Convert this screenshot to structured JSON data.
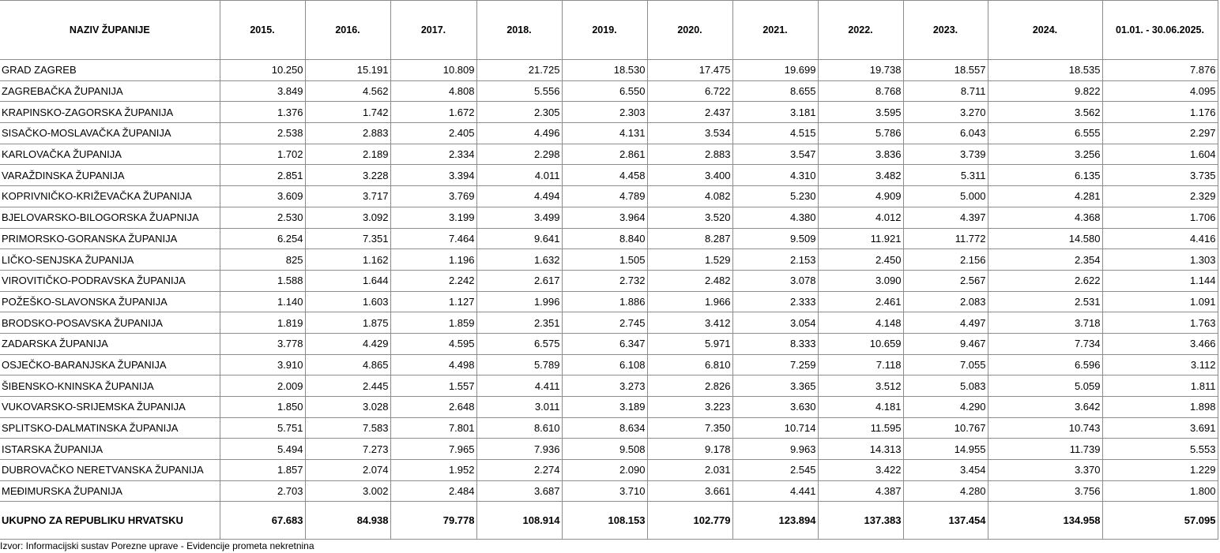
{
  "table": {
    "headers": [
      "NAZIV ŽUPANIJE",
      "2015.",
      "2016.",
      "2017.",
      "2018.",
      "2019.",
      "2020.",
      "2021.",
      "2022.",
      "2023.",
      "2024.",
      "01.01. - 30.06.2025."
    ],
    "rows": [
      [
        "GRAD ZAGREB",
        "10.250",
        "15.191",
        "10.809",
        "21.725",
        "18.530",
        "17.475",
        "19.699",
        "19.738",
        "18.557",
        "18.535",
        "7.876"
      ],
      [
        "ZAGREBAČKA ŽUPANIJA",
        "3.849",
        "4.562",
        "4.808",
        "5.556",
        "6.550",
        "6.722",
        "8.655",
        "8.768",
        "8.711",
        "9.822",
        "4.095"
      ],
      [
        "KRAPINSKO-ZAGORSKA ŽUPANIJA",
        "1.376",
        "1.742",
        "1.672",
        "2.305",
        "2.303",
        "2.437",
        "3.181",
        "3.595",
        "3.270",
        "3.562",
        "1.176"
      ],
      [
        "SISAČKO-MOSLAVAČKA ŽUPANIJA",
        "2.538",
        "2.883",
        "2.405",
        "4.496",
        "4.131",
        "3.534",
        "4.515",
        "5.786",
        "6.043",
        "6.555",
        "2.297"
      ],
      [
        "KARLOVAČKA ŽUPANIJA",
        "1.702",
        "2.189",
        "2.334",
        "2.298",
        "2.861",
        "2.883",
        "3.547",
        "3.836",
        "3.739",
        "3.256",
        "1.604"
      ],
      [
        "VARAŽDINSKA ŽUPANIJA",
        "2.851",
        "3.228",
        "3.394",
        "4.011",
        "4.458",
        "3.400",
        "4.310",
        "3.482",
        "5.311",
        "6.135",
        "3.735"
      ],
      [
        "KOPRIVNIČKO-KRIŽEVAČKA ŽUPANIJA",
        "3.609",
        "3.717",
        "3.769",
        "4.494",
        "4.789",
        "4.082",
        "5.230",
        "4.909",
        "5.000",
        "4.281",
        "2.329"
      ],
      [
        "BJELOVARSKO-BILOGORSKA ŽUAPNIJA",
        "2.530",
        "3.092",
        "3.199",
        "3.499",
        "3.964",
        "3.520",
        "4.380",
        "4.012",
        "4.397",
        "4.368",
        "1.706"
      ],
      [
        "PRIMORSKO-GORANSKA ŽUPANIJA",
        "6.254",
        "7.351",
        "7.464",
        "9.641",
        "8.840",
        "8.287",
        "9.509",
        "11.921",
        "11.772",
        "14.580",
        "4.416"
      ],
      [
        "LIČKO-SENJSKA ŽUPANIJA",
        "825",
        "1.162",
        "1.196",
        "1.632",
        "1.505",
        "1.529",
        "2.153",
        "2.450",
        "2.156",
        "2.354",
        "1.303"
      ],
      [
        "VIROVITIČKO-PODRAVSKA ŽUPANIJA",
        "1.588",
        "1.644",
        "2.242",
        "2.617",
        "2.732",
        "2.482",
        "3.078",
        "3.090",
        "2.567",
        "2.622",
        "1.144"
      ],
      [
        "POŽEŠKO-SLAVONSKA ŽUPANIJA",
        "1.140",
        "1.603",
        "1.127",
        "1.996",
        "1.886",
        "1.966",
        "2.333",
        "2.461",
        "2.083",
        "2.531",
        "1.091"
      ],
      [
        "BRODSKO-POSAVSKA ŽUPANIJA",
        "1.819",
        "1.875",
        "1.859",
        "2.351",
        "2.745",
        "3.412",
        "3.054",
        "4.148",
        "4.497",
        "3.718",
        "1.763"
      ],
      [
        "ZADARSKA ŽUPANIJA",
        "3.778",
        "4.429",
        "4.595",
        "6.575",
        "6.347",
        "5.971",
        "8.333",
        "10.659",
        "9.467",
        "7.734",
        "3.466"
      ],
      [
        "OSJEČKO-BARANJSKA ŽUPANIJA",
        "3.910",
        "4.865",
        "4.498",
        "5.789",
        "6.108",
        "6.810",
        "7.259",
        "7.118",
        "7.055",
        "6.596",
        "3.112"
      ],
      [
        "ŠIBENSKO-KNINSKA ŽUPANIJA",
        "2.009",
        "2.445",
        "1.557",
        "4.411",
        "3.273",
        "2.826",
        "3.365",
        "3.512",
        "5.083",
        "5.059",
        "1.811"
      ],
      [
        "VUKOVARSKO-SRIJEMSKA ŽUPANIJA",
        "1.850",
        "3.028",
        "2.648",
        "3.011",
        "3.189",
        "3.223",
        "3.630",
        "4.181",
        "4.290",
        "3.642",
        "1.898"
      ],
      [
        "SPLITSKO-DALMATINSKA ŽUPANIJA",
        "5.751",
        "7.583",
        "7.801",
        "8.610",
        "8.634",
        "7.350",
        "10.714",
        "11.595",
        "10.767",
        "10.743",
        "3.691"
      ],
      [
        "ISTARSKA ŽUPANIJA",
        "5.494",
        "7.273",
        "7.965",
        "7.936",
        "9.508",
        "9.178",
        "9.963",
        "14.313",
        "14.955",
        "11.739",
        "5.553"
      ],
      [
        "DUBROVAČKO NERETVANSKA ŽUPANIJA",
        "1.857",
        "2.074",
        "1.952",
        "2.274",
        "2.090",
        "2.031",
        "2.545",
        "3.422",
        "3.454",
        "3.370",
        "1.229"
      ],
      [
        "MEĐIMURSKA ŽUPANIJA",
        "2.703",
        "3.002",
        "2.484",
        "3.687",
        "3.710",
        "3.661",
        "4.441",
        "4.387",
        "4.280",
        "3.756",
        "1.800"
      ]
    ],
    "total": [
      "UKUPNO ZA REPUBLIKU HRVATSKU",
      "67.683",
      "84.938",
      "79.778",
      "108.914",
      "108.153",
      "102.779",
      "123.894",
      "137.383",
      "137.454",
      "134.958",
      "57.095"
    ]
  },
  "source": "Izvor: Informacijski sustav Porezne uprave - Evidencije prometa nekretnina"
}
